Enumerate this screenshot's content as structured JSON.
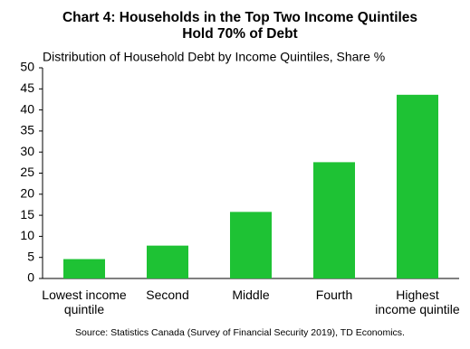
{
  "chart_data": {
    "type": "bar",
    "title": [
      "Chart 4: Households in the Top Two Income Quintiles",
      "Hold 70% of Debt"
    ],
    "subtitle": "Distribution of Household Debt by Income Quintiles, Share %",
    "categories": [
      "Lowest income\nquintile",
      "Second",
      "Middle",
      "Fourth",
      "Highest\nincome quintile"
    ],
    "values": [
      4.6,
      7.8,
      15.8,
      27.6,
      43.6
    ],
    "color": "#1ec234",
    "ylim": [
      0,
      50
    ],
    "yticks": [
      0,
      5,
      10,
      15,
      20,
      25,
      30,
      35,
      40,
      45,
      50
    ],
    "grid": false,
    "source": "Source: Statistics Canada (Survey of Financial Security 2019), TD Economics."
  }
}
